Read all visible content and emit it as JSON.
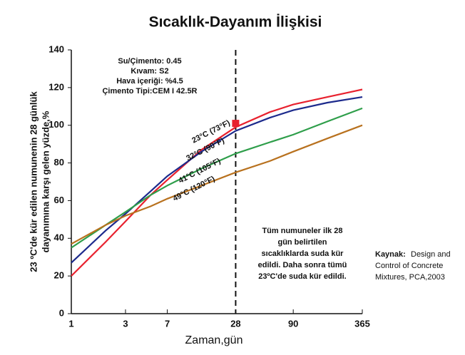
{
  "chart_data": {
    "type": "line",
    "title": "Sıcaklık-Dayanım İlişkisi",
    "ylabel": [
      "23 ºC'de kür edilen numunenin 28 günlük",
      "dayanımına karşı gelen yüzde,%"
    ],
    "xlabel": "Zaman,gün",
    "x": [
      1,
      2,
      3,
      5,
      7,
      14,
      28,
      56,
      90,
      180,
      365
    ],
    "xscale": "log",
    "xlim": [
      1,
      365
    ],
    "xticks": [
      1,
      3,
      7,
      28,
      90,
      365
    ],
    "ylim": [
      0,
      140
    ],
    "yticks": [
      0,
      20,
      40,
      60,
      80,
      100,
      120,
      140
    ],
    "series": [
      {
        "name": "23°C (73°F)",
        "color": "#e8212e",
        "values": [
          20,
          38,
          49,
          63,
          71,
          87,
          99,
          107,
          111,
          115,
          119
        ]
      },
      {
        "name": "32°C (90°F)",
        "color": "#1c2a8c",
        "values": [
          27,
          44,
          53,
          65,
          73,
          86,
          97,
          104,
          108,
          112,
          115
        ]
      },
      {
        "name": "41°C (105°F)",
        "color": "#2e9e4a",
        "values": [
          35,
          47,
          54,
          63,
          68,
          77,
          85,
          91,
          95,
          102,
          109
        ]
      },
      {
        "name": "49°C (120°F)",
        "color": "#b8711e",
        "values": [
          37,
          47,
          52,
          57,
          61,
          68,
          75,
          81,
          86,
          93,
          100
        ]
      }
    ],
    "marker": {
      "x": 28,
      "y": 101,
      "color": "#e8212e"
    },
    "vline": 28,
    "mix_box": [
      "Su/Çimento: 0.45",
      "Kıvam: S2",
      "Hava içeriği: %4.5",
      "Çimento Tipi:CEM I 42.5R"
    ],
    "note_box": [
      "Tüm numuneler ilk 28",
      "gün belirtilen",
      "sıcaklıklarda suda kür",
      "edildi. Daha sonra tümü",
      "23ºC'de suda kür edildi."
    ],
    "source": {
      "label": "Kaynak:",
      "lines": [
        "Design and",
        "Control of Concrete",
        "Mixtures, PCA,2003"
      ]
    }
  }
}
